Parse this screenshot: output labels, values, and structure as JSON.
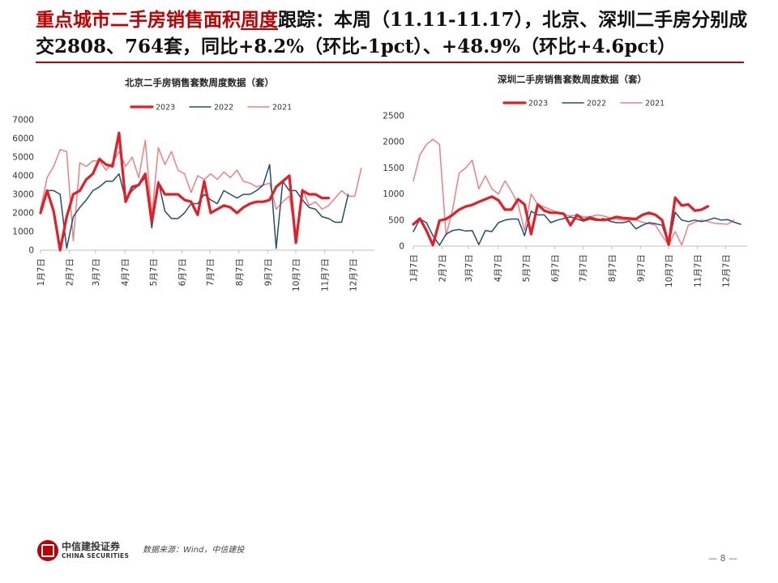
{
  "slide": {
    "title_part1": "重点城市二手房销售面积",
    "title_part2": "周度",
    "title_part3": "跟踪：本周（11.11-11.17），北京、深圳二手房分别成交2808、764套，同比+8.2%（环比-1pct）、+48.9%（环比+4.6pct）"
  },
  "footer": {
    "logo_cn": "中信建投证券",
    "logo_en": "CHINA SECURITIES",
    "source": "数据来源：Wind，中信建投",
    "page": "— 8 —"
  },
  "colors": {
    "y2023": "#e31e24",
    "y2022": "#1f4e79",
    "y2021": "#f08080",
    "axis": "#bfbfbf",
    "accent": "#c00000"
  },
  "chart_data": [
    {
      "type": "line",
      "title": "北京二手房销售套数周度数据（套）",
      "ylim": [
        0,
        7000
      ],
      "yticks": [
        0,
        1000,
        2000,
        3000,
        4000,
        5000,
        6000,
        7000
      ],
      "xlim": [
        1,
        52
      ],
      "xticks": [
        {
          "week": 1,
          "label": "1月7日"
        },
        {
          "week": 5.4,
          "label": "2月7日"
        },
        {
          "week": 9.4,
          "label": "3月7日"
        },
        {
          "week": 13.9,
          "label": "4月7日"
        },
        {
          "week": 18.2,
          "label": "5月7日"
        },
        {
          "week": 22.6,
          "label": "6月7日"
        },
        {
          "week": 26.9,
          "label": "7月7日"
        },
        {
          "week": 31.3,
          "label": "8月7日"
        },
        {
          "week": 35.7,
          "label": "9月7日"
        },
        {
          "week": 40,
          "label": "10月7日"
        },
        {
          "week": 44.4,
          "label": "11月7日"
        },
        {
          "week": 48.7,
          "label": "12月7日"
        }
      ],
      "series": [
        {
          "name": "2023",
          "color": "#e31e24",
          "width": 3.2,
          "x_start": 1,
          "values": [
            2000,
            3200,
            2100,
            0,
            1800,
            3000,
            3200,
            3800,
            4100,
            4900,
            4600,
            4500,
            6300,
            2600,
            3400,
            3500,
            4100,
            1500,
            3600,
            3000,
            3000,
            3000,
            2700,
            2600,
            1900,
            3700,
            2000,
            2200,
            2400,
            2300,
            2000,
            2300,
            2500,
            2600,
            2600,
            2700,
            3400,
            3700,
            4000,
            400,
            3200,
            3000,
            3000,
            2800,
            2800
          ]
        },
        {
          "name": "2022",
          "color": "#1f4e79",
          "width": 1.5,
          "x_start": 1,
          "values": [
            2200,
            3200,
            3200,
            3000,
            100,
            1800,
            2300,
            2700,
            3200,
            3400,
            3700,
            3700,
            4100,
            2700,
            3200,
            3500,
            3900,
            1200,
            3700,
            2100,
            1700,
            1700,
            2000,
            2500,
            2500,
            3000,
            2700,
            2500,
            3200,
            3000,
            2800,
            3000,
            3000,
            3200,
            3500,
            4600,
            100,
            3700,
            3200,
            3200,
            2700,
            2300,
            2200,
            1800,
            1700,
            1500,
            1500,
            3000
          ]
        },
        {
          "name": "2021",
          "color": "#f08080",
          "width": 1.5,
          "x_start": 1,
          "values": [
            2200,
            3900,
            4500,
            5400,
            5300,
            500,
            4700,
            4500,
            4800,
            4800,
            4300,
            4700,
            5300,
            4500,
            5000,
            3900,
            5900,
            1800,
            5500,
            4600,
            5300,
            4300,
            4100,
            3100,
            4000,
            3800,
            4100,
            3800,
            4200,
            3900,
            4300,
            3700,
            3600,
            3400,
            3500,
            3600,
            2200,
            2600,
            2900,
            700,
            3300,
            2400,
            2600,
            2200,
            2400,
            2800,
            3200,
            2900,
            2900,
            4400
          ]
        }
      ],
      "legend": [
        "2023",
        "2022",
        "2021"
      ]
    },
    {
      "type": "line",
      "title": "深圳二手房销售套数周度数据（套）",
      "ylim": [
        0,
        2500
      ],
      "yticks": [
        0,
        500,
        1000,
        1500,
        2000,
        2500
      ],
      "xlim": [
        1,
        52
      ],
      "xticks": [
        {
          "week": 1,
          "label": "1月7日"
        },
        {
          "week": 5.4,
          "label": "2月7日"
        },
        {
          "week": 9.4,
          "label": "3月7日"
        },
        {
          "week": 13.9,
          "label": "4月7日"
        },
        {
          "week": 18.2,
          "label": "5月7日"
        },
        {
          "week": 22.6,
          "label": "6月7日"
        },
        {
          "week": 26.9,
          "label": "7月7日"
        },
        {
          "week": 31.3,
          "label": "8月7日"
        },
        {
          "week": 35.7,
          "label": "9月7日"
        },
        {
          "week": 40,
          "label": "10月7日"
        },
        {
          "week": 44.4,
          "label": "11月7日"
        },
        {
          "week": 48.7,
          "label": "12月7日"
        }
      ],
      "series": [
        {
          "name": "2023",
          "color": "#e31e24",
          "width": 3.2,
          "x_start": 1,
          "values": [
            420,
            530,
            300,
            20,
            490,
            520,
            600,
            700,
            760,
            790,
            850,
            900,
            950,
            880,
            700,
            700,
            900,
            800,
            230,
            800,
            680,
            640,
            640,
            620,
            400,
            600,
            500,
            550,
            510,
            500,
            520,
            560,
            540,
            530,
            520,
            600,
            640,
            600,
            500,
            30,
            930,
            780,
            800,
            680,
            700,
            764
          ]
        },
        {
          "name": "2022",
          "color": "#1f4e79",
          "width": 1.5,
          "x_start": 1,
          "values": [
            280,
            520,
            450,
            200,
            20,
            230,
            300,
            320,
            290,
            300,
            30,
            300,
            280,
            450,
            500,
            520,
            520,
            200,
            670,
            600,
            600,
            450,
            500,
            530,
            560,
            520,
            480,
            520,
            490,
            530,
            480,
            450,
            450,
            480,
            330,
            400,
            450,
            430,
            400,
            20,
            650,
            500,
            470,
            500,
            470,
            500,
            540,
            500,
            510,
            460,
            420
          ]
        },
        {
          "name": "2021",
          "color": "#f08080",
          "width": 1.5,
          "x_start": 1,
          "values": [
            1250,
            1750,
            1950,
            2050,
            1950,
            200,
            700,
            1400,
            1500,
            1650,
            1100,
            1350,
            1100,
            1000,
            1250,
            1050,
            800,
            300,
            1000,
            800,
            750,
            700,
            650,
            600,
            580,
            600,
            560,
            560,
            600,
            580,
            540,
            520,
            500,
            500,
            500,
            460,
            430,
            400,
            200,
            20,
            280,
            20,
            400,
            460,
            500,
            470,
            440,
            430,
            420,
            500
          ]
        }
      ],
      "legend": [
        "2023",
        "2022",
        "2021"
      ]
    }
  ]
}
